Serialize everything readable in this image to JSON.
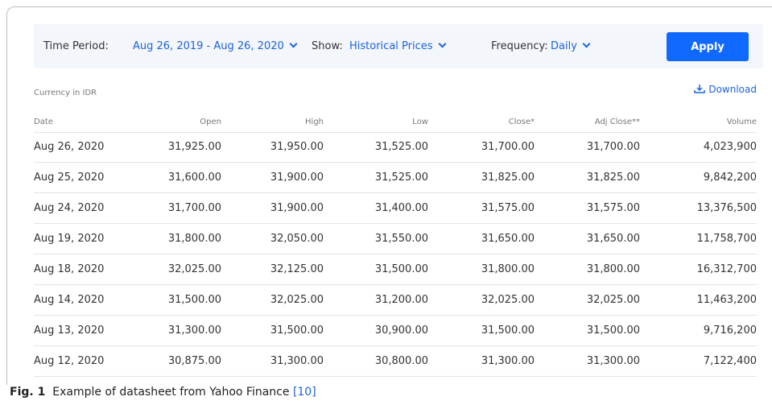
{
  "filter_bar": {
    "time_period_label": "Time Period:",
    "time_period_value": "Aug 26, 2019 - Aug 26, 2020",
    "show_label": "Show:",
    "show_value": "Historical Prices",
    "frequency_label": "Frequency:",
    "frequency_value": "Daily",
    "apply": "Apply"
  },
  "currency": "Currency in IDR",
  "download": "Download",
  "table": {
    "headers": [
      "Date",
      "Open",
      "High",
      "Low",
      "Close*",
      "Adj Close**",
      "Volume"
    ],
    "rows": [
      [
        "Aug 26, 2020",
        "31,925.00",
        "31,950.00",
        "31,525.00",
        "31,700.00",
        "31,700.00",
        "4,023,900"
      ],
      [
        "Aug 25, 2020",
        "31,600.00",
        "31,900.00",
        "31,525.00",
        "31,825.00",
        "31,825.00",
        "9,842,200"
      ],
      [
        "Aug 24, 2020",
        "31,700.00",
        "31,900.00",
        "31,400.00",
        "31,575.00",
        "31,575.00",
        "13,376,500"
      ],
      [
        "Aug 19, 2020",
        "31,800.00",
        "32,050.00",
        "31,550.00",
        "31,650.00",
        "31,650.00",
        "11,758,700"
      ],
      [
        "Aug 18, 2020",
        "32,025.00",
        "32,125.00",
        "31,500.00",
        "31,800.00",
        "31,800.00",
        "16,312,700"
      ],
      [
        "Aug 14, 2020",
        "31,500.00",
        "32,025.00",
        "31,200.00",
        "32,025.00",
        "32,025.00",
        "11,463,200"
      ],
      [
        "Aug 13, 2020",
        "31,300.00",
        "31,500.00",
        "30,900.00",
        "31,500.00",
        "31,500.00",
        "9,716,200"
      ],
      [
        "Aug 12, 2020",
        "30,875.00",
        "31,300.00",
        "30,800.00",
        "31,300.00",
        "31,300.00",
        "7,122,400"
      ]
    ]
  },
  "caption": {
    "label": "Fig. 1",
    "text": "Example of datasheet from Yahoo Finance",
    "ref": "[10]"
  }
}
